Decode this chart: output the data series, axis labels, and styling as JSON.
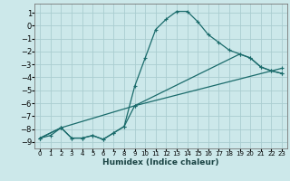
{
  "title": "",
  "xlabel": "Humidex (Indice chaleur)",
  "bg_color": "#cce8ea",
  "grid_color": "#aacdd0",
  "line_color": "#1a6b6b",
  "xlim": [
    -0.5,
    23.5
  ],
  "ylim": [
    -9.5,
    1.7
  ],
  "xticks": [
    0,
    1,
    2,
    3,
    4,
    5,
    6,
    7,
    8,
    9,
    10,
    11,
    12,
    13,
    14,
    15,
    16,
    17,
    18,
    19,
    20,
    21,
    22,
    23
  ],
  "yticks": [
    1,
    0,
    -1,
    -2,
    -3,
    -4,
    -5,
    -6,
    -7,
    -8,
    -9
  ],
  "line1_x": [
    0,
    1,
    2,
    3,
    4,
    5,
    6,
    7,
    8,
    9,
    10,
    11,
    12,
    13,
    14,
    15,
    16,
    17,
    18,
    19,
    20,
    21,
    22,
    23
  ],
  "line1_y": [
    -8.7,
    -8.5,
    -7.9,
    -8.7,
    -8.7,
    -8.5,
    -8.8,
    -8.3,
    -7.8,
    -4.7,
    -2.5,
    -0.3,
    0.5,
    1.1,
    1.1,
    0.3,
    -0.7,
    -1.3,
    -1.9,
    -2.2,
    -2.5,
    -3.2,
    -3.5,
    -3.7
  ],
  "line2_x": [
    0,
    2,
    3,
    4,
    5,
    6,
    7,
    8,
    9,
    19,
    20,
    21,
    22,
    23
  ],
  "line2_y": [
    -8.7,
    -7.9,
    -8.7,
    -8.7,
    -8.5,
    -8.8,
    -8.3,
    -7.8,
    -6.2,
    -2.2,
    -2.5,
    -3.2,
    -3.5,
    -3.7
  ],
  "line3_x": [
    0,
    2,
    9,
    23
  ],
  "line3_y": [
    -8.7,
    -7.9,
    -6.2,
    -3.3
  ]
}
